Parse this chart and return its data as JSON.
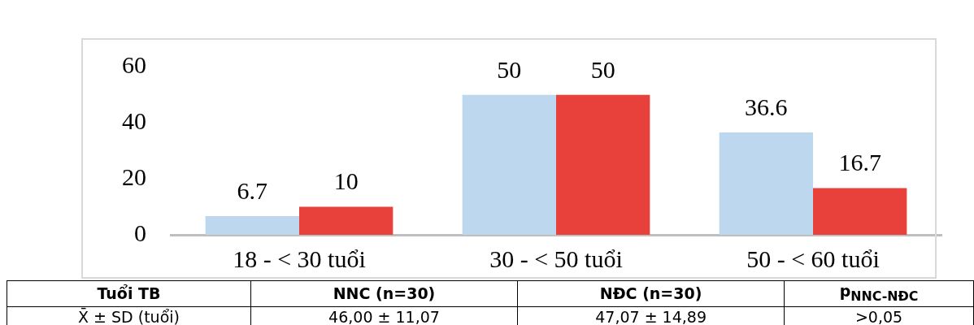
{
  "chart_data": {
    "type": "bar",
    "categories": [
      "18 - < 30 tuổi",
      "30 - < 50 tuổi",
      "50 - < 60 tuổi"
    ],
    "series": [
      {
        "color": "#bdd7ee",
        "values": [
          6.7,
          50,
          36.6
        ]
      },
      {
        "color": "#e8413c",
        "values": [
          10,
          50,
          16.7
        ]
      }
    ],
    "ylim": [
      0,
      70
    ],
    "yticks": [
      0,
      20,
      40,
      60
    ],
    "grid": false,
    "legend": false,
    "data_labels": true,
    "annotations": [
      "Tuổi TB",
      "NNC (n=30)",
      "NĐC (n=30)",
      "p$_{NNC-NĐC}$",
      "X̄ ± SD (tuổi)",
      "46,00 ± 11,07",
      "47,07 ± 14,89",
      ">0,05"
    ]
  }
}
